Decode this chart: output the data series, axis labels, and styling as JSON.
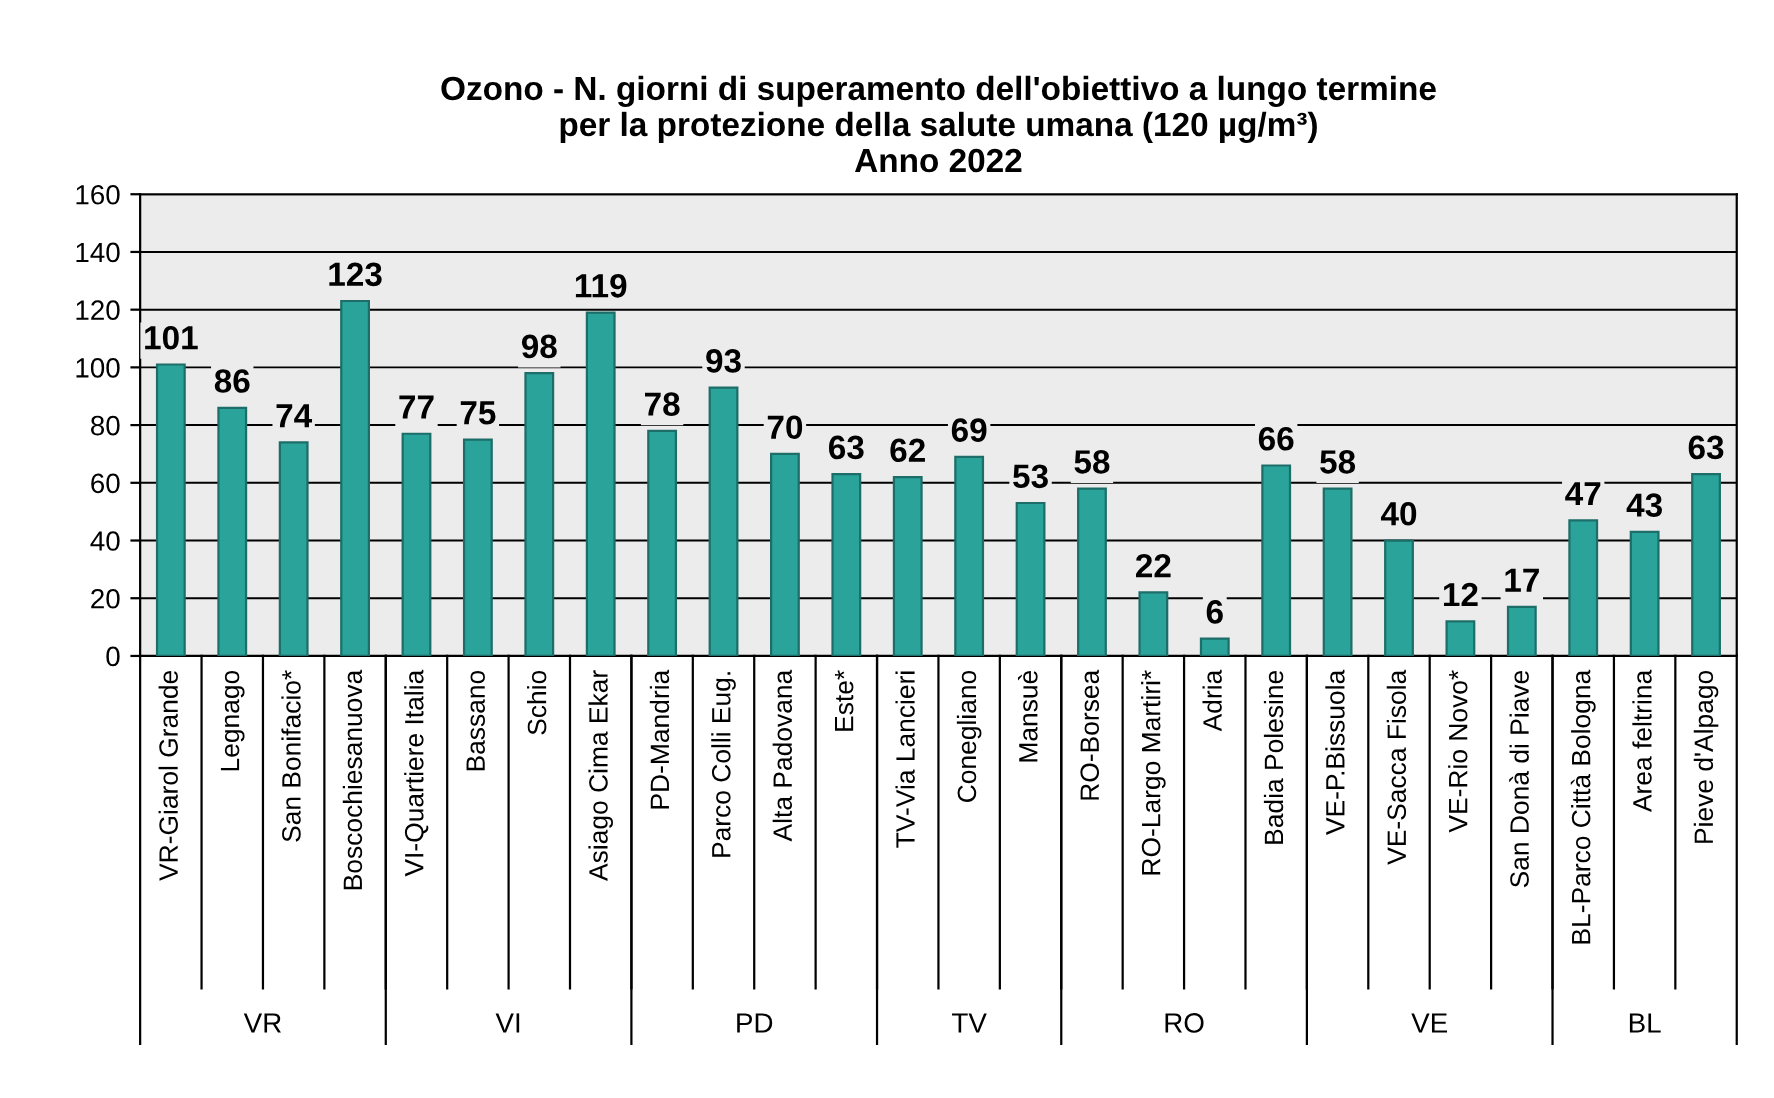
{
  "chart_data": {
    "type": "bar",
    "title": "Ozono - N. giorni di superamento dell'obiettivo a lungo termine\nper la protezione della salute umana (120 µg/m³)\nAnno 2022",
    "categories": [
      "VR-Giarol Grande",
      "Legnago",
      "San Bonifacio*",
      "Boscochiesanuova",
      "VI-Quartiere Italia",
      "Bassano",
      "Schio",
      "Asiago Cima Ekar",
      "PD-Mandria",
      "Parco Colli Eug.",
      "Alta Padovana",
      "Este*",
      "TV-Via Lancieri",
      "Conegliano",
      "Mansuè",
      "RO-Borsea",
      "RO-Largo Martiri*",
      "Adria",
      "Badia Polesine",
      "VE-P.Bissuola",
      "VE-Sacca Fisola",
      "VE-Rio Novo*",
      "San Donà di Piave",
      "BL-Parco Città Bologna",
      "Area feltrina",
      "Pieve d'Alpago"
    ],
    "values": [
      101,
      86,
      74,
      123,
      77,
      75,
      98,
      119,
      78,
      93,
      70,
      63,
      62,
      69,
      53,
      58,
      22,
      6,
      66,
      58,
      40,
      12,
      17,
      47,
      43,
      63
    ],
    "color": "#2aa39a",
    "ylim": [
      0,
      160
    ],
    "yticks": [
      0,
      20,
      40,
      60,
      80,
      100,
      120,
      140,
      160
    ],
    "grid": "y",
    "data_labels": true,
    "annotations": [
      "VR",
      "VI",
      "PD",
      "TV",
      "RO",
      "VE",
      "BL"
    ]
  }
}
